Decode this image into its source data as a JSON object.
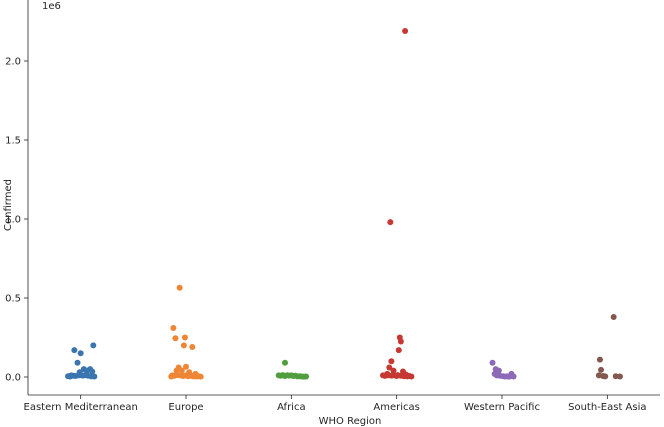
{
  "chart_data": {
    "type": "scatter",
    "subtype": "strip",
    "title": "",
    "xlabel": "WHO Region",
    "ylabel": "Confirmed",
    "y_offset_label": "1e6",
    "categories": [
      "Eastern Mediterranean",
      "Europe",
      "Africa",
      "Americas",
      "Western Pacific",
      "South-East Asia"
    ],
    "colors": [
      "#3a75af",
      "#ee8636",
      "#519e3e",
      "#c53932",
      "#8d69b8",
      "#84584e"
    ],
    "ylim": [
      -0.115,
      2.3
    ],
    "yticks": [
      0.0,
      0.5,
      1.0,
      1.5,
      2.0
    ],
    "ytick_labels": [
      "0.0",
      "0.5",
      "1.0",
      "1.5",
      "2.0"
    ],
    "grid": false,
    "legend": "none",
    "points": [
      [
        {
          "x": -0.06,
          "y": 0.17
        },
        {
          "x": 0.0,
          "y": 0.15
        },
        {
          "x": 0.12,
          "y": 0.2
        },
        {
          "x": -0.03,
          "y": 0.09
        },
        {
          "x": 0.03,
          "y": 0.05
        },
        {
          "x": 0.09,
          "y": 0.05
        },
        {
          "x": 0.06,
          "y": 0.04
        },
        {
          "x": -0.01,
          "y": 0.03
        },
        {
          "x": 0.11,
          "y": 0.035
        },
        {
          "x": -0.09,
          "y": 0.01
        },
        {
          "x": -0.07,
          "y": 0.008
        },
        {
          "x": -0.05,
          "y": 0.006
        },
        {
          "x": -0.02,
          "y": 0.01
        },
        {
          "x": 0.0,
          "y": 0.012
        },
        {
          "x": 0.02,
          "y": 0.009
        },
        {
          "x": 0.04,
          "y": 0.011
        },
        {
          "x": 0.07,
          "y": 0.008
        },
        {
          "x": 0.1,
          "y": 0.004
        },
        {
          "x": 0.13,
          "y": 0.003
        },
        {
          "x": -0.12,
          "y": 0.005
        },
        {
          "x": -0.1,
          "y": 0.003
        }
      ],
      [
        {
          "x": -0.06,
          "y": 0.565
        },
        {
          "x": -0.12,
          "y": 0.31
        },
        {
          "x": -0.1,
          "y": 0.245
        },
        {
          "x": -0.01,
          "y": 0.25
        },
        {
          "x": -0.02,
          "y": 0.2
        },
        {
          "x": 0.06,
          "y": 0.19
        },
        {
          "x": -0.07,
          "y": 0.06
        },
        {
          "x": 0.0,
          "y": 0.065
        },
        {
          "x": -0.09,
          "y": 0.04
        },
        {
          "x": -0.04,
          "y": 0.04
        },
        {
          "x": 0.03,
          "y": 0.03
        },
        {
          "x": 0.09,
          "y": 0.02
        },
        {
          "x": -0.13,
          "y": 0.01
        },
        {
          "x": -0.11,
          "y": 0.008
        },
        {
          "x": -0.08,
          "y": 0.012
        },
        {
          "x": -0.05,
          "y": 0.01
        },
        {
          "x": -0.03,
          "y": 0.006
        },
        {
          "x": -0.01,
          "y": 0.009
        },
        {
          "x": 0.01,
          "y": 0.011
        },
        {
          "x": 0.02,
          "y": 0.005
        },
        {
          "x": 0.04,
          "y": 0.01
        },
        {
          "x": 0.05,
          "y": 0.007
        },
        {
          "x": 0.07,
          "y": 0.004
        },
        {
          "x": 0.08,
          "y": 0.006
        },
        {
          "x": 0.1,
          "y": 0.003
        },
        {
          "x": 0.12,
          "y": 0.005
        },
        {
          "x": 0.14,
          "y": 0.002
        },
        {
          "x": -0.14,
          "y": 0.003
        }
      ],
      [
        {
          "x": -0.06,
          "y": 0.09
        },
        {
          "x": -0.12,
          "y": 0.01
        },
        {
          "x": -0.1,
          "y": 0.008
        },
        {
          "x": -0.08,
          "y": 0.012
        },
        {
          "x": -0.06,
          "y": 0.006
        },
        {
          "x": -0.04,
          "y": 0.011
        },
        {
          "x": -0.02,
          "y": 0.009
        },
        {
          "x": 0.0,
          "y": 0.01
        },
        {
          "x": 0.02,
          "y": 0.006
        },
        {
          "x": 0.04,
          "y": 0.008
        },
        {
          "x": 0.06,
          "y": 0.004
        },
        {
          "x": 0.08,
          "y": 0.005
        },
        {
          "x": 0.1,
          "y": 0.003
        },
        {
          "x": 0.12,
          "y": 0.002
        },
        {
          "x": 0.14,
          "y": 0.003
        }
      ],
      [
        {
          "x": 0.08,
          "y": 2.19
        },
        {
          "x": -0.06,
          "y": 0.98
        },
        {
          "x": 0.03,
          "y": 0.25
        },
        {
          "x": 0.04,
          "y": 0.225
        },
        {
          "x": 0.02,
          "y": 0.17
        },
        {
          "x": -0.05,
          "y": 0.1
        },
        {
          "x": -0.07,
          "y": 0.06
        },
        {
          "x": -0.03,
          "y": 0.04
        },
        {
          "x": 0.06,
          "y": 0.035
        },
        {
          "x": -0.09,
          "y": 0.02
        },
        {
          "x": 0.09,
          "y": 0.015
        },
        {
          "x": -0.13,
          "y": 0.01
        },
        {
          "x": -0.11,
          "y": 0.007
        },
        {
          "x": -0.08,
          "y": 0.011
        },
        {
          "x": -0.05,
          "y": 0.009
        },
        {
          "x": -0.02,
          "y": 0.01
        },
        {
          "x": 0.0,
          "y": 0.006
        },
        {
          "x": 0.01,
          "y": 0.012
        },
        {
          "x": 0.04,
          "y": 0.008
        },
        {
          "x": 0.07,
          "y": 0.005
        },
        {
          "x": 0.1,
          "y": 0.004
        },
        {
          "x": 0.12,
          "y": 0.006
        },
        {
          "x": 0.14,
          "y": 0.003
        }
      ],
      [
        {
          "x": -0.09,
          "y": 0.09
        },
        {
          "x": -0.06,
          "y": 0.05
        },
        {
          "x": -0.03,
          "y": 0.04
        },
        {
          "x": -0.07,
          "y": 0.02
        },
        {
          "x": 0.09,
          "y": 0.02
        },
        {
          "x": -0.05,
          "y": 0.01
        },
        {
          "x": -0.02,
          "y": 0.008
        },
        {
          "x": 0.01,
          "y": 0.005
        },
        {
          "x": 0.03,
          "y": 0.003
        },
        {
          "x": 0.05,
          "y": 0.004
        },
        {
          "x": 0.07,
          "y": 0.002
        },
        {
          "x": 0.11,
          "y": 0.003
        }
      ],
      [
        {
          "x": 0.06,
          "y": 0.38
        },
        {
          "x": -0.07,
          "y": 0.11
        },
        {
          "x": -0.06,
          "y": 0.045
        },
        {
          "x": -0.08,
          "y": 0.01
        },
        {
          "x": -0.04,
          "y": 0.006
        },
        {
          "x": -0.02,
          "y": 0.004
        },
        {
          "x": 0.08,
          "y": 0.005
        },
        {
          "x": 0.12,
          "y": 0.003
        }
      ]
    ]
  }
}
